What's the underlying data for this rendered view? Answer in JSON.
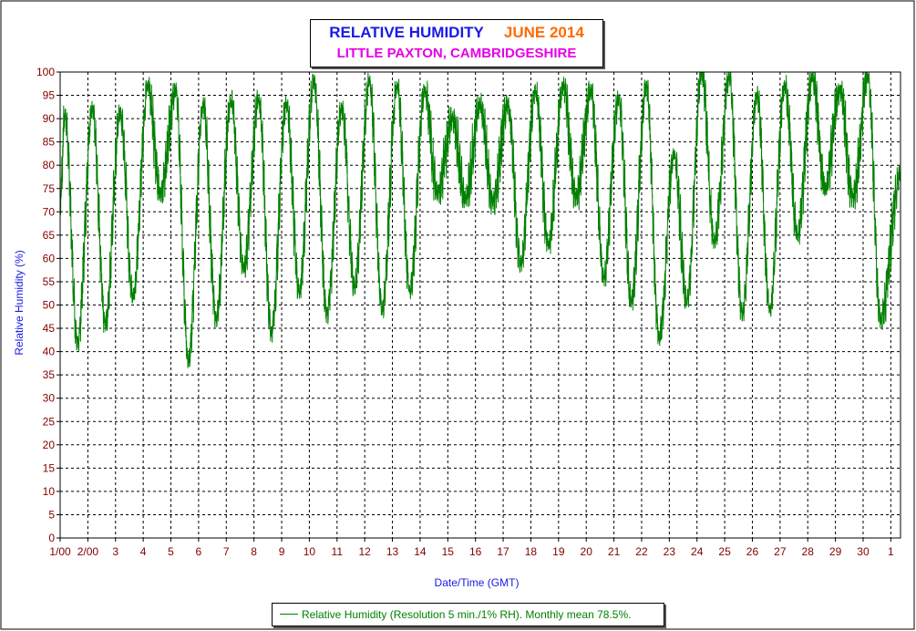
{
  "chart_data": {
    "type": "line",
    "title_main": "RELATIVE HUMIDITY",
    "title_month": "JUNE 2014",
    "subtitle": "LITTLE PAXTON, CAMBRIDGESHIRE",
    "xlabel": "Date/Time (GMT)",
    "ylabel": "Relative Humidity (%)",
    "ylim": [
      0,
      100
    ],
    "y_ticks": [
      0,
      5,
      10,
      15,
      20,
      25,
      30,
      35,
      40,
      45,
      50,
      55,
      60,
      65,
      70,
      75,
      80,
      85,
      90,
      95,
      100
    ],
    "x_tick_labels": [
      "1/00",
      "2/00",
      "3",
      "4",
      "5",
      "6",
      "7",
      "8",
      "9",
      "10",
      "11",
      "12",
      "13",
      "14",
      "15",
      "16",
      "17",
      "18",
      "19",
      "20",
      "21",
      "22",
      "23",
      "24",
      "25",
      "26",
      "27",
      "28",
      "29",
      "30",
      "1"
    ],
    "x_range_days": [
      1,
      31.35
    ],
    "grid": true,
    "legend_position": "bottom-center",
    "series": [
      {
        "name": "Relative Humidity (Resolution 5 min./1% RH). Monthly mean 78.5%.",
        "color": "#008000",
        "daily_max": [
          91,
          92,
          91,
          97,
          96,
          93,
          94,
          94,
          93,
          98,
          92,
          98,
          97,
          96,
          90,
          93,
          93,
          96,
          97,
          96,
          94,
          97,
          82,
          100,
          99,
          95,
          97,
          99,
          96,
          99
        ],
        "daily_min": [
          42,
          46,
          52,
          74,
          38,
          47,
          58,
          44,
          53,
          48,
          54,
          49,
          53,
          74,
          73,
          72,
          59,
          63,
          73,
          56,
          51,
          43,
          51,
          64,
          48,
          49,
          65,
          75,
          73,
          47
        ]
      }
    ]
  },
  "colors": {
    "title_main": "#1a1ae6",
    "title_month": "#ff6a00",
    "subtitle": "#e600e6",
    "tick_labels": "#800000",
    "axis_titles": "#1a1ae6",
    "series": "#008000"
  }
}
